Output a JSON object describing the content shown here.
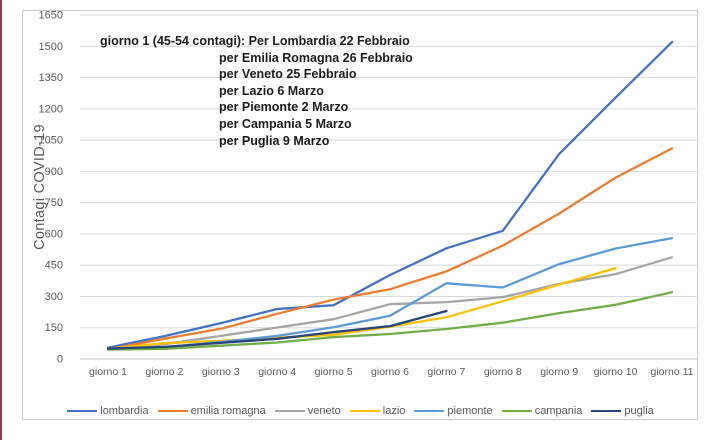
{
  "chart_data": {
    "type": "line",
    "title": "",
    "xlabel": "",
    "ylabel": "Contagi COVID-19",
    "ylim": [
      0,
      1650
    ],
    "y_ticks": [
      0,
      150,
      300,
      450,
      600,
      750,
      900,
      1050,
      1200,
      1350,
      1500,
      1650
    ],
    "grid": true,
    "legend_position": "bottom",
    "categories": [
      "giorno 1",
      "giorno 2",
      "giorno 3",
      "giorno 4",
      "giorno 5",
      "giorno 6",
      "giorno 7",
      "giorno 8",
      "giorno 9",
      "giorno 10",
      "giorno 11"
    ],
    "series": [
      {
        "name": "lombardia",
        "color": "#4472C4",
        "values": [
          54,
          110,
          172,
          240,
          258,
          403,
          531,
          615,
          984,
          1254,
          1520
        ]
      },
      {
        "name": "emilia romagna",
        "color": "#ED7D31",
        "values": [
          47,
          97,
          145,
          217,
          285,
          335,
          420,
          544,
          698,
          870,
          1010
        ]
      },
      {
        "name": "veneto",
        "color": "#A5A5A5",
        "values": [
          45,
          71,
          111,
          151,
          191,
          263,
          273,
          297,
          360,
          407,
          488
        ]
      },
      {
        "name": "lazio",
        "color": "#FFC000",
        "values": [
          49,
          76,
          87,
          102,
          116,
          155,
          200,
          277,
          357,
          436
        ]
      },
      {
        "name": "piemonte",
        "color": "#5B9BD5",
        "values": [
          51,
          56,
          82,
          111,
          152,
          207,
          363,
          343,
          455,
          530,
          580
        ]
      },
      {
        "name": "campania",
        "color": "#70AD47",
        "values": [
          45,
          49,
          64,
          79,
          105,
          120,
          144,
          174,
          220,
          260,
          320
        ]
      },
      {
        "name": "puglia",
        "color": "#264478",
        "values": [
          50,
          58,
          77,
          97,
          129,
          158,
          230
        ]
      }
    ],
    "annotation": {
      "line1": "giorno 1 (45-54 contagi): Per Lombardia 22 Febbraio",
      "indented_lines": [
        "per Emilia Romagna 26 Febbraio",
        "per Veneto 25 Febbraio",
        "per Lazio 6 Marzo",
        "per Piemonte 2 Marzo",
        "per Campania 5 Marzo",
        "per Puglia 9 Marzo"
      ]
    },
    "colors": {
      "gridline": "#d9d9d9",
      "axis_line": "#c6c6c6",
      "tick_text": "#595959",
      "frame_border": "#c9c9c9",
      "left_edge_strip": "#8e4040"
    }
  }
}
